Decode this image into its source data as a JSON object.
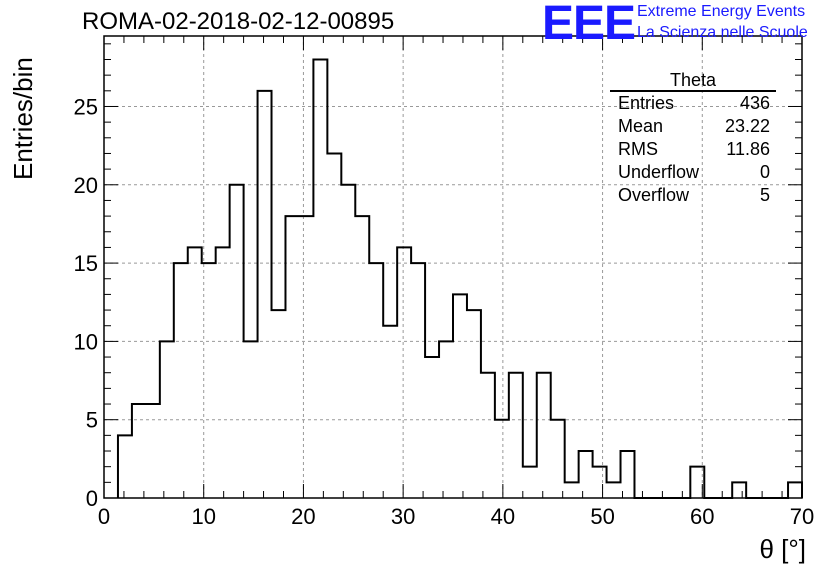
{
  "header": {
    "run_title": "ROMA-02-2018-02-12-00895",
    "logo_text": "EEE",
    "logo_line1": "Extreme Energy Events",
    "logo_line2": "La Scienza nelle Scuole"
  },
  "stats_box": {
    "title": "Theta",
    "rows": [
      {
        "label": "Entries",
        "value": "436"
      },
      {
        "label": "Mean",
        "value": "23.22"
      },
      {
        "label": "RMS",
        "value": "11.86"
      },
      {
        "label": "Underflow",
        "value": "0"
      },
      {
        "label": "Overflow",
        "value": "5"
      }
    ]
  },
  "colors": {
    "line": "#000000",
    "logo": "#1a1aff",
    "grid": "#999999"
  },
  "chart_data": {
    "type": "histogram",
    "xlabel": "θ [°]",
    "ylabel": "Entries/bin",
    "xlim": [
      0,
      70
    ],
    "ylim": [
      0,
      29.5
    ],
    "grid": true,
    "x_ticks": [
      0,
      10,
      20,
      30,
      40,
      50,
      60,
      70
    ],
    "y_ticks": [
      0,
      5,
      10,
      15,
      20,
      25
    ],
    "bin_edges": [
      1.4,
      2.8,
      4.2,
      5.6,
      7.0,
      8.4,
      9.8,
      11.2,
      12.6,
      14.0,
      15.4,
      16.8,
      18.2,
      19.6,
      21.0,
      22.4,
      23.8,
      25.2,
      26.6,
      28.0,
      29.4,
      30.8,
      32.2,
      33.6,
      35.0,
      36.4,
      37.8,
      39.2,
      40.6,
      42.0,
      43.4,
      44.8,
      46.2,
      47.6,
      49.0,
      50.4,
      51.8,
      53.2,
      54.6,
      56.0,
      57.4,
      58.8,
      60.2,
      61.6,
      63.0,
      64.4,
      65.8,
      67.2,
      68.6,
      70.0
    ],
    "counts": [
      4,
      6,
      6,
      10,
      15,
      16,
      15,
      16,
      20,
      10,
      26,
      12,
      18,
      18,
      28,
      22,
      20,
      18,
      15,
      11,
      16,
      15,
      9,
      10,
      13,
      12,
      8,
      5,
      8,
      2,
      8,
      5,
      1,
      3,
      2,
      1,
      3,
      0,
      0,
      0,
      0,
      2,
      0,
      0,
      1,
      0,
      0,
      0,
      1
    ]
  }
}
